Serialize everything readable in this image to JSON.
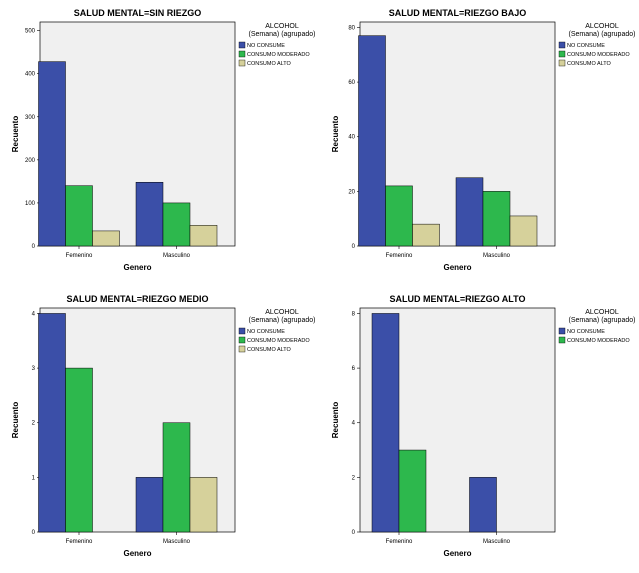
{
  "chart_data": [
    {
      "type": "bar",
      "title": "SALUD MENTAL=SIN RIEZGO",
      "xlabel": "Genero",
      "ylabel": "Recuento",
      "categories": [
        "Femenino",
        "Masculino"
      ],
      "ylim": [
        0,
        520
      ],
      "yticks": [
        "0",
        "100",
        "200",
        "300",
        "400",
        "500"
      ],
      "ytick_values": [
        0,
        100,
        200,
        300,
        400,
        500
      ],
      "legend": {
        "title_lines": [
          "ALCOHOL",
          "(Semana) (agrupado)"
        ],
        "placement": "right"
      },
      "series": [
        {
          "name": "NO CONSUME",
          "color": "#3b4fa8",
          "values": [
            428,
            148
          ]
        },
        {
          "name": "CONSUMO MODERADO",
          "color": "#2db84d",
          "values": [
            140,
            100
          ]
        },
        {
          "name": "CONSUMO ALTO",
          "color": "#d6d19b",
          "values": [
            35,
            48
          ]
        }
      ]
    },
    {
      "type": "bar",
      "title": "SALUD MENTAL=RIEZGO BAJO",
      "xlabel": "Genero",
      "ylabel": "Recuento",
      "categories": [
        "Femenino",
        "Masculino"
      ],
      "ylim": [
        0,
        82
      ],
      "yticks": [
        "0",
        "20",
        "40",
        "60",
        "80"
      ],
      "ytick_values": [
        0,
        20,
        40,
        60,
        80
      ],
      "legend": {
        "title_lines": [
          "ALCOHOL",
          "(Semana) (agrupado)"
        ],
        "placement": "right"
      },
      "series": [
        {
          "name": "NO CONSUME",
          "color": "#3b4fa8",
          "values": [
            77,
            25
          ]
        },
        {
          "name": "CONSUMO MODERADO",
          "color": "#2db84d",
          "values": [
            22,
            20
          ]
        },
        {
          "name": "CONSUMO ALTO",
          "color": "#d6d19b",
          "values": [
            8,
            11
          ]
        }
      ]
    },
    {
      "type": "bar",
      "title": "SALUD MENTAL=RIEZGO MEDIO",
      "xlabel": "Genero",
      "ylabel": "Recuento",
      "categories": [
        "Femenino",
        "Masculino"
      ],
      "ylim": [
        0,
        4.1
      ],
      "yticks": [
        "0",
        "1",
        "2",
        "3",
        "4"
      ],
      "ytick_values": [
        0,
        1,
        2,
        3,
        4
      ],
      "legend": {
        "title_lines": [
          "ALCOHOL",
          "(Semana) (agrupado)"
        ],
        "placement": "right"
      },
      "series": [
        {
          "name": "NO CONSUME",
          "color": "#3b4fa8",
          "values": [
            4,
            1
          ]
        },
        {
          "name": "CONSUMO MODERADO",
          "color": "#2db84d",
          "values": [
            3,
            2
          ]
        },
        {
          "name": "CONSUMO ALTO",
          "color": "#d6d19b",
          "values": [
            0,
            1
          ]
        }
      ]
    },
    {
      "type": "bar",
      "title": "SALUD MENTAL=RIEZGO ALTO",
      "xlabel": "Genero",
      "ylabel": "Recuento",
      "categories": [
        "Femenino",
        "Masculino"
      ],
      "ylim": [
        0,
        8.2
      ],
      "yticks": [
        "0",
        "2",
        "4",
        "6",
        "8"
      ],
      "ytick_values": [
        0,
        2,
        4,
        6,
        8
      ],
      "legend": {
        "title_lines": [
          "ALCOHOL",
          "(Semana) (agrupado)"
        ],
        "placement": "right"
      },
      "series": [
        {
          "name": "NO CONSUME",
          "color": "#3b4fa8",
          "values": [
            8,
            2
          ]
        },
        {
          "name": "CONSUMO MODERADO",
          "color": "#2db84d",
          "values": [
            3,
            0
          ]
        }
      ]
    }
  ]
}
